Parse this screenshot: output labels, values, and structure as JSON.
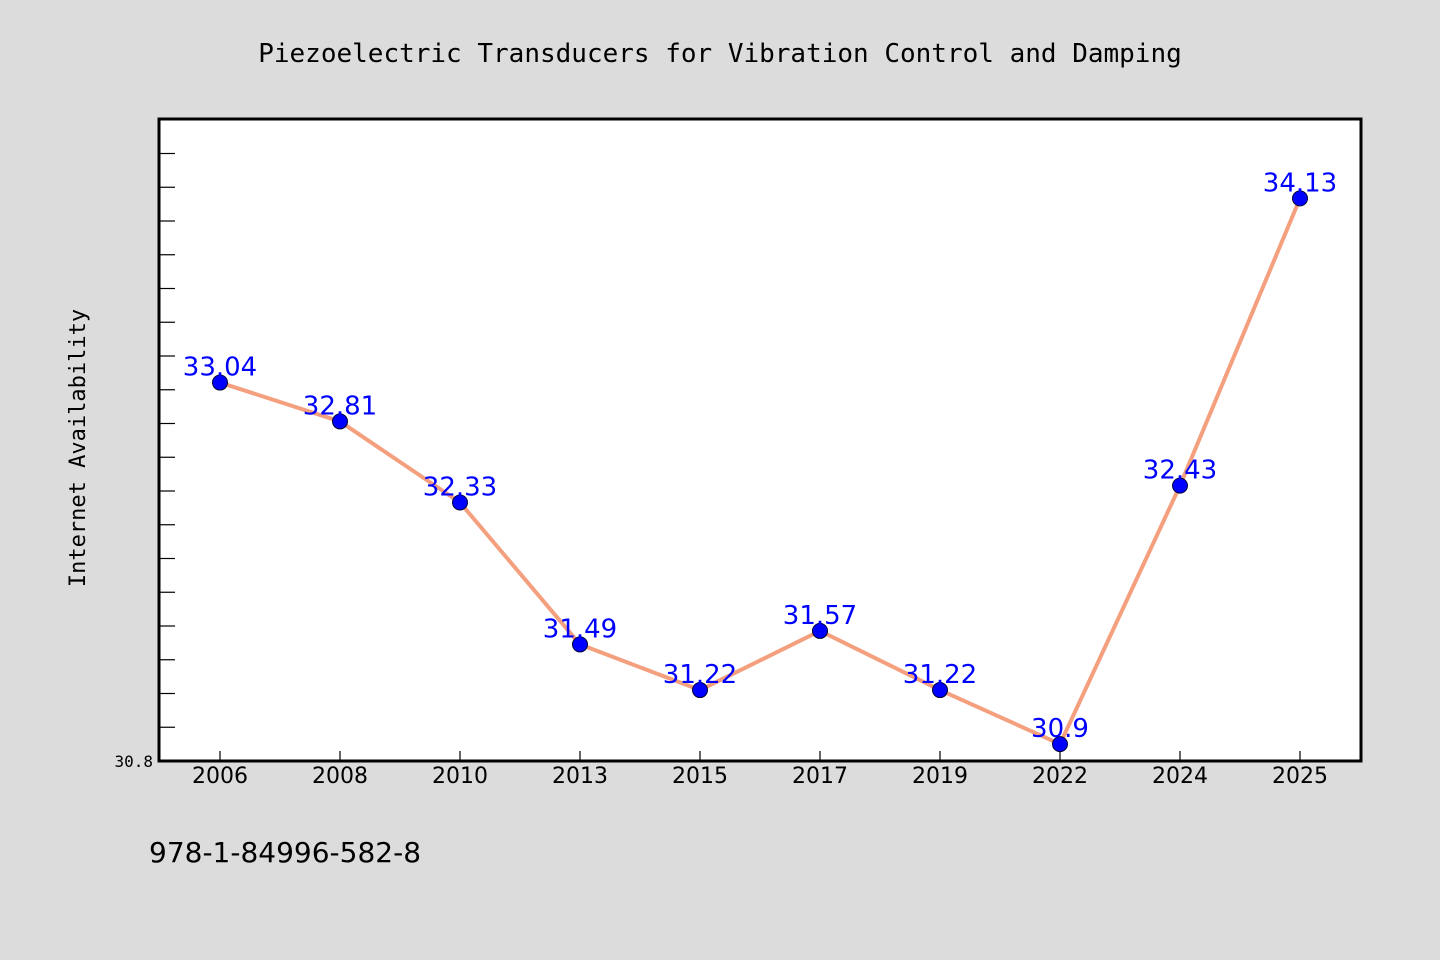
{
  "chart_data": {
    "type": "line",
    "title": "Piezoelectric Transducers for Vibration Control and Damping",
    "xlabel": "",
    "ylabel": "Internet Availability",
    "categories": [
      "2006",
      "2008",
      "2010",
      "2013",
      "2015",
      "2017",
      "2019",
      "2022",
      "2024",
      "2025"
    ],
    "series": [
      {
        "values": [
          33.04,
          32.81,
          32.33,
          31.49,
          31.22,
          31.57,
          31.22,
          30.9,
          32.43,
          34.13
        ],
        "labels": [
          "33.04",
          "32.81",
          "32.33",
          "31.49",
          "31.22",
          "31.57",
          "31.22",
          "30.9",
          "32.43",
          "34.13"
        ],
        "line_color": "#f4a07e",
        "marker_color": "#0000ff",
        "label_color": "#0000ff"
      }
    ],
    "yticks_labeled": [
      "30.8"
    ],
    "ylim": [
      30.8,
      34.6
    ],
    "grid": false,
    "legend": "none"
  },
  "footer": {
    "isbn": "978-1-84996-582-8"
  },
  "colors": {
    "background": "#dcdcdc",
    "plot_background": "#ffffff",
    "axis": "#000000"
  }
}
